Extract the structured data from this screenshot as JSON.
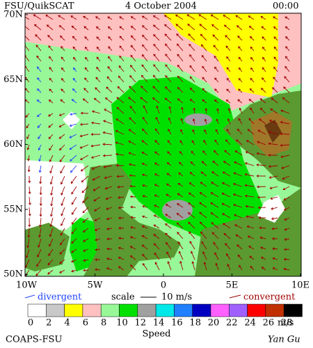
{
  "header": {
    "title": "FSU/QuikSCAT",
    "date": "4 October 2004",
    "time": "00:00"
  },
  "map": {
    "lat_labels": [
      "70N",
      "65N",
      "60N",
      "55N",
      "50N"
    ],
    "lon_labels": [
      "10W",
      "5W",
      "0",
      "5E",
      "10E"
    ]
  },
  "legend": {
    "divergent": "divergent",
    "scale": "scale",
    "scale_value": "10 m/s",
    "convergent": "convergent"
  },
  "colorbar": {
    "colors": [
      "#ffffff",
      "#c8c8c8",
      "#ffff00",
      "#ffc0c0",
      "#98f898",
      "#00e000",
      "#a0a0a0",
      "#00e8e8",
      "#2080ff",
      "#0000c0",
      "#ff60ff",
      "#a060ff",
      "#ff0000",
      "#c03000",
      "#000000"
    ],
    "labels": [
      "0",
      "2",
      "4",
      "6",
      "8",
      "10",
      "12",
      "14",
      "16",
      "18",
      "20",
      "22",
      "24",
      "26",
      "28"
    ],
    "unit": "m/s",
    "title": "Speed"
  },
  "footer": {
    "left": "COAPS-FSU",
    "right": "Yan Gu"
  }
}
